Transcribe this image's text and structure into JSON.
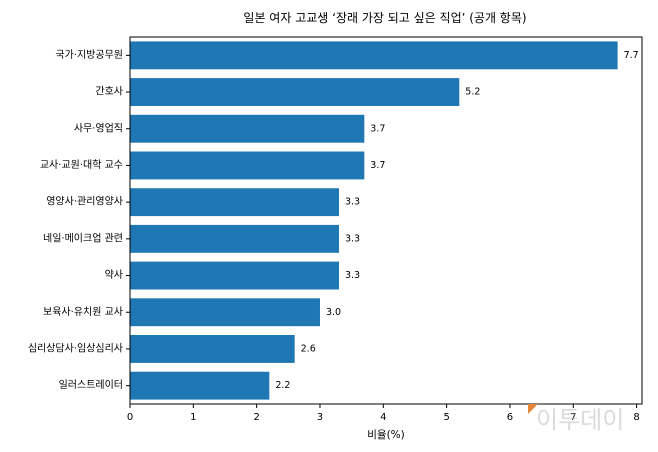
{
  "chart_data": {
    "type": "bar",
    "orientation": "horizontal",
    "title": "일본 여자 고교생 ‘장래 가장 되고 싶은 직업’ (공개 항목)",
    "xlabel": "비율(%)",
    "ylabel": "",
    "categories": [
      "국가·지방공무원",
      "간호사",
      "사무·영업직",
      "교사·교원·대학 교수",
      "영양사·관리영양사",
      "네일·메이크업 관련",
      "약사",
      "보육사·유치원 교사",
      "심리상담사·임상심리사",
      "일러스트레이터"
    ],
    "values": [
      7.7,
      5.2,
      3.7,
      3.7,
      3.3,
      3.3,
      3.3,
      3.0,
      2.6,
      2.2
    ],
    "value_labels": [
      "7.7",
      "5.2",
      "3.7",
      "3.7",
      "3.3",
      "3.3",
      "3.3",
      "3.0",
      "2.6",
      "2.2"
    ],
    "xticks": [
      "0",
      "1",
      "2",
      "3",
      "4",
      "5",
      "6",
      "7",
      "8"
    ],
    "xlim": [
      0,
      8.085
    ],
    "bar_color": "#1f77b4",
    "grid": false,
    "legend": "none"
  },
  "watermark": {
    "text": "이투데이",
    "accent_color": "#e8873a"
  }
}
